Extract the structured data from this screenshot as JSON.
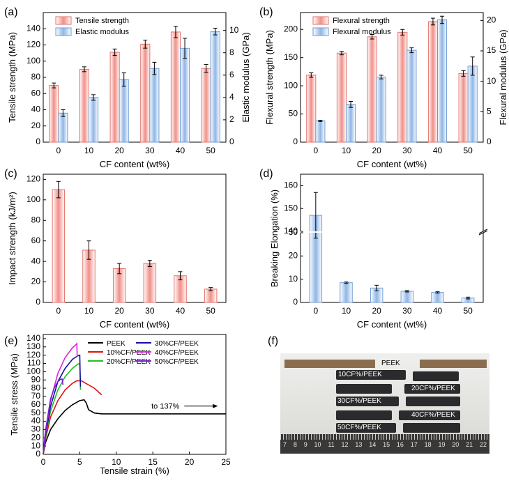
{
  "chart_data": [
    {
      "panel": "(a)",
      "type": "bar",
      "xlabel": "CF content (wt%)",
      "ylabel": "Tensile strength (MPa)",
      "y2label": "Elastic modulus (GPa)",
      "categories": [
        "0",
        "10",
        "20",
        "30",
        "40",
        "50"
      ],
      "ylim": [
        0,
        160
      ],
      "y2lim": [
        0,
        11.6
      ],
      "yticks": [
        0,
        20,
        40,
        60,
        80,
        100,
        120,
        140
      ],
      "y2ticks": [
        0,
        2,
        4,
        6,
        8,
        10
      ],
      "series": [
        {
          "name": "Tensile strength",
          "axis": "left",
          "color": "#f4a9a4",
          "values": [
            70,
            90,
            111,
            121,
            136,
            91
          ],
          "errors": [
            3,
            3,
            4,
            5,
            7,
            5
          ]
        },
        {
          "name": "Elastic modulus",
          "axis": "right",
          "color": "#a9c6e8",
          "values": [
            2.6,
            4.0,
            5.6,
            6.6,
            8.4,
            9.9
          ],
          "errors": [
            0.3,
            0.25,
            0.6,
            0.55,
            0.9,
            0.3
          ]
        }
      ],
      "legend": "top-left"
    },
    {
      "panel": "(b)",
      "type": "bar",
      "xlabel": "CF content (wt%)",
      "ylabel": "Flexural strength (MPa)",
      "y2label": "Flexural modulus (GPa)",
      "categories": [
        "0",
        "10",
        "20",
        "30",
        "40",
        "50"
      ],
      "ylim": [
        0,
        230
      ],
      "y2lim": [
        0,
        21.3
      ],
      "yticks": [
        0,
        50,
        100,
        150,
        200
      ],
      "y2ticks": [
        0,
        5,
        10,
        15,
        20
      ],
      "series": [
        {
          "name": "Flexural strength",
          "axis": "left",
          "color": "#f4a9a4",
          "values": [
            119,
            158,
            187,
            195,
            214,
            122
          ],
          "errors": [
            4,
            3,
            4,
            5,
            6,
            5
          ]
        },
        {
          "name": "Flexural modulus",
          "axis": "right",
          "color": "#a9c6e8",
          "values": [
            3.5,
            6.2,
            10.7,
            15.1,
            20.1,
            12.5
          ],
          "errors": [
            0.1,
            0.5,
            0.3,
            0.4,
            0.6,
            1.5
          ]
        }
      ],
      "legend": "top-left"
    },
    {
      "panel": "(c)",
      "type": "bar",
      "xlabel": "CF content (wt%)",
      "ylabel": "Impact strength (kJ/m²)",
      "categories": [
        "0",
        "10",
        "20",
        "30",
        "40",
        "50"
      ],
      "ylim": [
        0,
        125
      ],
      "yticks": [
        0,
        20,
        40,
        60,
        80,
        100,
        120
      ],
      "series": [
        {
          "color": "#f4a9a4",
          "values": [
            110,
            51,
            33,
            38,
            26,
            13
          ],
          "errors": [
            8,
            9,
            5,
            3,
            4,
            1.5
          ]
        }
      ]
    },
    {
      "panel": "(d)",
      "type": "bar",
      "xlabel": "CF content (wt%)",
      "ylabel": "Breaking Elongation (%)",
      "categories": [
        "0",
        "10",
        "20",
        "30",
        "40",
        "50"
      ],
      "broken_axis": {
        "lower": [
          0,
          30
        ],
        "upper": [
          140,
          165
        ]
      },
      "yticks_lower": [
        0,
        10,
        20,
        30
      ],
      "yticks_upper": [
        140,
        150,
        160
      ],
      "series": [
        {
          "color": "#a9c6e8",
          "values": [
            147,
            8.5,
            6.2,
            4.8,
            4.3,
            1.9
          ],
          "errors": [
            10,
            0.3,
            1.2,
            0.3,
            0.3,
            0.4
          ]
        }
      ]
    },
    {
      "panel": "(e)",
      "type": "line",
      "xlabel": "Tensile strain (%)",
      "ylabel": "Tensile stress (MPa)",
      "xlim": [
        0,
        25
      ],
      "ylim": [
        0,
        145
      ],
      "xticks": [
        0,
        5,
        10,
        15,
        20,
        25
      ],
      "yticks": [
        0,
        10,
        20,
        30,
        40,
        50,
        60,
        70,
        80,
        90,
        100,
        110,
        120,
        130,
        140
      ],
      "annotation": "to 137%",
      "series": [
        {
          "name": "PEEK",
          "color": "#000000",
          "x": [
            0,
            0.3,
            1,
            2,
            3,
            4,
            5,
            5.6,
            5.9,
            6.2,
            7,
            8,
            12,
            25
          ],
          "y": [
            0,
            14,
            30,
            43,
            53,
            60,
            65,
            66,
            62,
            54,
            50,
            49,
            49,
            49
          ]
        },
        {
          "name": "10%CF/PEEK",
          "color": "#e01010",
          "x": [
            0,
            0.3,
            1,
            2,
            3,
            4,
            4.6,
            5.2,
            6,
            7,
            8
          ],
          "y": [
            0,
            18,
            45,
            65,
            78,
            86,
            89,
            89,
            85,
            80,
            72
          ]
        },
        {
          "name": "20%CF/PEEK",
          "color": "#20c020",
          "x": [
            0,
            0.3,
            1,
            2,
            3,
            4,
            4.7,
            5.0,
            5.05,
            5.1
          ],
          "y": [
            0,
            20,
            52,
            78,
            94,
            104,
            109,
            110,
            95,
            78
          ]
        },
        {
          "name": "30%CF/PEEK",
          "color": "#1010a0",
          "x": [
            0,
            0.3,
            1,
            2,
            3,
            4,
            4.7,
            5.0,
            5.05,
            5.1
          ],
          "y": [
            0,
            22,
            58,
            88,
            104,
            115,
            119,
            120,
            100,
            82
          ]
        },
        {
          "name": "40%CF/PEEK",
          "color": "#e020e0",
          "x": [
            0,
            0.3,
            1,
            2,
            3,
            4,
            4.5,
            4.6,
            4.65
          ],
          "y": [
            0,
            25,
            65,
            98,
            117,
            129,
            133,
            134,
            118
          ]
        },
        {
          "name": "50%CF/PEEK",
          "color": "#7020d0",
          "x": [
            0,
            0.3,
            1,
            1.5,
            2,
            2.4,
            2.6,
            2.7
          ],
          "y": [
            0,
            28,
            67,
            80,
            88,
            91,
            91,
            84
          ]
        }
      ],
      "legend": "top-right"
    }
  ],
  "photo": {
    "panel": "(f)",
    "labels": [
      "PEEK",
      "10CF%/PEEK",
      "20CF%/PEEK",
      "30CF%/PEEK",
      "40CF%/PEEK",
      "50CF%/PEEK"
    ],
    "ruler": [
      "7",
      "8",
      "9",
      "10",
      "11",
      "12",
      "13",
      "14",
      "15",
      "16",
      "17",
      "18",
      "19",
      "20",
      "21",
      "22"
    ]
  }
}
